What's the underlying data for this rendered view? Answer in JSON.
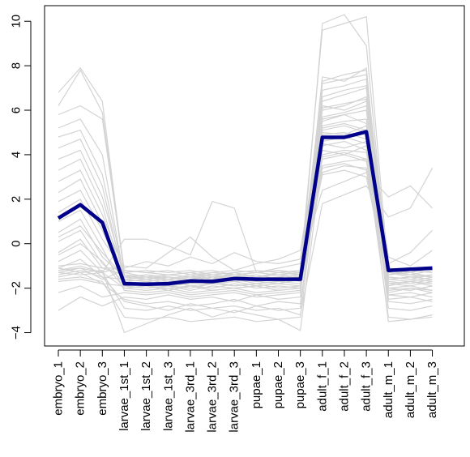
{
  "chart_data": {
    "type": "line",
    "title": "",
    "xlabel": "",
    "ylabel": "",
    "ylim": [
      -4.6,
      10.7
    ],
    "yticks": [
      -4,
      -2,
      0,
      2,
      4,
      6,
      8,
      10
    ],
    "grid": false,
    "legend": "none",
    "colors": {
      "background_lines": "#d3d3d3",
      "highlight": "#00008b",
      "axis": "#000000"
    },
    "categories": [
      "embryo_1",
      "embryo_2",
      "embryo_3",
      "larvae_1st_1",
      "larvae_1st_2",
      "larvae_1st_3",
      "larvae_3rd_1",
      "larvae_3rd_2",
      "larvae_3rd_3",
      "pupae_1",
      "pupae_2",
      "pupae_3",
      "adult_f_1",
      "adult_f_2",
      "adult_f_3",
      "adult_m_1",
      "adult_m_2",
      "adult_m_3"
    ],
    "highlight_series": {
      "values": [
        1.15,
        1.75,
        0.95,
        -1.8,
        -1.82,
        -1.8,
        -1.68,
        -1.7,
        -1.57,
        -1.6,
        -1.6,
        -1.6,
        4.78,
        4.78,
        5.03,
        -1.2,
        -1.15,
        -1.1
      ]
    },
    "background_series": [
      [
        6.8,
        7.9,
        6.4,
        -1.4,
        -1.6,
        -1.5,
        -1.7,
        -1.5,
        -1.6,
        -1.5,
        -1.7,
        -1.6,
        3.1,
        3.3,
        3.0,
        -1.6,
        -1.7,
        -1.5
      ],
      [
        6.2,
        7.8,
        5.9,
        -1.2,
        -1.3,
        -1.4,
        -1.5,
        -1.3,
        -1.4,
        -1.3,
        -1.4,
        -1.3,
        3.5,
        3.7,
        3.8,
        -1.3,
        -1.5,
        -1.4
      ],
      [
        5.8,
        6.2,
        5.6,
        -1.3,
        -1.5,
        -1.6,
        -1.4,
        -1.6,
        -1.3,
        -1.5,
        -1.4,
        -1.5,
        4.0,
        4.2,
        4.1,
        -1.4,
        -1.2,
        -1.3
      ],
      [
        5.2,
        5.6,
        4.0,
        -1.6,
        -1.7,
        -1.9,
        -1.8,
        -1.7,
        -1.9,
        -1.8,
        -1.7,
        -1.8,
        4.5,
        4.3,
        4.6,
        -1.8,
        -1.9,
        -1.7
      ],
      [
        4.8,
        5.1,
        3.1,
        -1.5,
        -1.4,
        -1.5,
        -1.6,
        -1.4,
        -1.5,
        -1.4,
        -1.6,
        -1.5,
        5.2,
        5.4,
        5.1,
        -1.5,
        -1.6,
        -1.4
      ],
      [
        4.3,
        4.7,
        2.6,
        -1.7,
        -1.8,
        -1.7,
        -1.9,
        -1.8,
        -1.7,
        -1.9,
        -1.8,
        -1.9,
        5.6,
        5.8,
        6.0,
        -1.9,
        -1.7,
        -1.8
      ],
      [
        3.8,
        4.2,
        2.1,
        -1.4,
        -1.6,
        -1.4,
        -1.5,
        -1.6,
        -1.4,
        -1.6,
        -1.5,
        -1.4,
        6.1,
        6.3,
        6.5,
        -1.2,
        -1.4,
        -1.5
      ],
      [
        3.3,
        3.8,
        1.7,
        -1.8,
        -1.9,
        -2.0,
        -1.9,
        -2.0,
        -1.8,
        -2.0,
        -1.9,
        -2.0,
        6.6,
        6.9,
        7.1,
        -2.0,
        -2.1,
        -1.9
      ],
      [
        2.8,
        3.3,
        1.3,
        -1.2,
        -1.3,
        -1.2,
        -1.4,
        -1.3,
        -1.2,
        -1.3,
        -1.2,
        -1.3,
        7.2,
        7.4,
        7.6,
        -1.1,
        -1.2,
        -1.3
      ],
      [
        2.3,
        2.9,
        0.9,
        -1.9,
        -2.0,
        -1.9,
        -2.1,
        -1.9,
        -2.0,
        -1.9,
        -2.1,
        -2.0,
        7.5,
        7.3,
        7.9,
        -2.2,
        -2.0,
        -2.1
      ],
      [
        1.9,
        2.4,
        0.6,
        -1.6,
        -1.5,
        -1.7,
        -1.6,
        -1.5,
        -1.7,
        -1.6,
        -1.5,
        -1.7,
        9.9,
        10.3,
        8.9,
        -1.6,
        -1.5,
        -1.6
      ],
      [
        1.4,
        2.0,
        0.2,
        -1.3,
        -1.2,
        -1.3,
        -1.2,
        -1.4,
        -1.3,
        -1.2,
        -1.3,
        -1.2,
        9.6,
        9.9,
        10.2,
        -1.3,
        -1.4,
        -1.2
      ],
      [
        1.0,
        1.5,
        -0.2,
        -2.1,
        -2.2,
        -2.1,
        -2.3,
        -2.2,
        -2.1,
        -2.3,
        -2.2,
        -2.1,
        3.4,
        3.6,
        3.3,
        -2.3,
        -2.2,
        -2.4
      ],
      [
        0.5,
        1.1,
        -0.6,
        -1.5,
        -1.6,
        -1.5,
        -1.7,
        -1.6,
        -1.5,
        -1.7,
        -1.6,
        -1.5,
        3.8,
        4.0,
        3.7,
        -1.5,
        -1.6,
        -1.7
      ],
      [
        0.1,
        0.6,
        -0.9,
        -1.7,
        -1.6,
        -1.8,
        -1.7,
        -1.8,
        -1.6,
        -1.7,
        -1.8,
        -1.6,
        4.4,
        4.6,
        4.2,
        -1.7,
        -1.8,
        -1.6
      ],
      [
        -0.4,
        0.2,
        -1.1,
        -1.4,
        -1.5,
        -1.4,
        -1.3,
        -1.5,
        -1.4,
        -1.5,
        -1.3,
        -1.4,
        4.9,
        5.0,
        4.7,
        -1.4,
        -1.3,
        -1.5
      ],
      [
        -0.8,
        -0.3,
        -1.3,
        -2.0,
        -2.1,
        -2.0,
        -2.2,
        -2.1,
        -2.0,
        -2.2,
        -2.1,
        -2.0,
        5.3,
        5.5,
        5.6,
        -2.1,
        -2.0,
        -2.2
      ],
      [
        -1.1,
        -0.7,
        -1.5,
        -1.6,
        -1.7,
        -1.6,
        -1.8,
        -1.7,
        -1.6,
        -1.8,
        -1.7,
        -1.6,
        5.7,
        5.9,
        6.2,
        -1.8,
        -1.7,
        -1.9
      ],
      [
        -1.3,
        -1.1,
        -1.6,
        -1.2,
        -1.3,
        -1.4,
        -1.3,
        -1.2,
        -1.4,
        -1.3,
        -1.2,
        -1.4,
        6.0,
        6.2,
        6.6,
        -1.2,
        -1.3,
        -1.1
      ],
      [
        -1.5,
        -1.3,
        -1.8,
        -1.9,
        -1.8,
        -1.9,
        -2.0,
        -1.8,
        -1.9,
        -1.8,
        -2.0,
        -1.9,
        6.4,
        6.7,
        7.0,
        -2.0,
        -1.9,
        -2.1
      ],
      [
        -2.2,
        -1.9,
        -2.4,
        -2.2,
        -2.3,
        -2.2,
        -2.4,
        -2.3,
        -2.2,
        -2.4,
        -2.3,
        -2.2,
        6.9,
        7.1,
        7.4,
        -2.3,
        -2.4,
        -2.2
      ],
      [
        -3.0,
        -2.4,
        -2.8,
        -2.4,
        -2.5,
        -2.3,
        -2.5,
        -2.4,
        -2.6,
        -2.3,
        -2.5,
        -2.4,
        7.3,
        7.6,
        7.8,
        -2.5,
        -2.4,
        -2.6
      ],
      [
        -1.2,
        -1.0,
        -1.3,
        0.2,
        0.2,
        -0.1,
        -0.5,
        1.9,
        1.6,
        -1.3,
        -1.1,
        -0.9,
        2.4,
        2.8,
        3.2,
        2.1,
        2.6,
        1.6
      ],
      [
        -1.4,
        -1.2,
        -1.5,
        -2.6,
        -2.8,
        -3.0,
        -2.7,
        -2.9,
        -2.8,
        -3.0,
        -2.9,
        -3.2,
        1.8,
        2.2,
        2.6,
        1.2,
        1.6,
        3.4
      ],
      [
        -1.1,
        -1.3,
        -1.2,
        -4.0,
        -3.6,
        -3.2,
        -2.9,
        -3.3,
        -3.0,
        -3.2,
        -3.4,
        -3.9,
        3.9,
        4.1,
        3.8,
        -3.3,
        -3.4,
        -3.2
      ],
      [
        -1.6,
        -1.5,
        -1.7,
        -3.3,
        -3.4,
        -3.3,
        -3.5,
        -3.4,
        -3.3,
        -3.5,
        -3.4,
        -3.3,
        4.6,
        4.8,
        4.5,
        -3.5,
        -3.4,
        -3.3
      ],
      [
        -1.3,
        -1.4,
        -1.3,
        -2.9,
        -3.0,
        -2.8,
        -3.0,
        -2.9,
        -3.1,
        -2.8,
        -3.0,
        -2.9,
        5.1,
        5.3,
        5.0,
        -2.9,
        -3.0,
        -2.8
      ],
      [
        -1.2,
        -1.1,
        -1.3,
        -1.0,
        -1.1,
        -0.4,
        0.3,
        -0.6,
        -1.2,
        -0.9,
        -0.7,
        -0.3,
        5.5,
        5.8,
        5.4,
        -0.9,
        -0.4,
        0.6
      ],
      [
        -1.0,
        -0.9,
        -1.1,
        -1.1,
        -0.8,
        -1.0,
        -0.6,
        -0.9,
        -0.4,
        -0.8,
        -0.9,
        -0.7,
        6.2,
        6.0,
        6.4,
        -0.6,
        -1.0,
        -0.3
      ],
      [
        -1.7,
        -1.6,
        -1.8,
        -2.5,
        -2.7,
        -2.6,
        -2.8,
        -2.7,
        -2.5,
        -2.8,
        -2.6,
        -2.7,
        4.2,
        4.0,
        4.4,
        -2.6,
        -2.7,
        -2.5
      ],
      [
        -0.5,
        0.0,
        -0.8,
        -2.0,
        -1.9,
        -2.1,
        -1.9,
        -2.1,
        -2.0,
        -1.9,
        -2.1,
        -2.0,
        3.2,
        3.5,
        3.4,
        -2.0,
        -2.1,
        -1.9
      ],
      [
        0.3,
        0.8,
        -0.4,
        -1.5,
        -1.4,
        -1.6,
        -1.5,
        -1.4,
        -1.6,
        -1.5,
        -1.4,
        -1.6,
        5.0,
        4.9,
        5.3,
        -1.6,
        -1.5,
        -1.4
      ]
    ]
  },
  "y_axis": {
    "tick_labels": [
      "−4",
      "−2",
      "0",
      "2",
      "4",
      "6",
      "8",
      "10"
    ]
  }
}
